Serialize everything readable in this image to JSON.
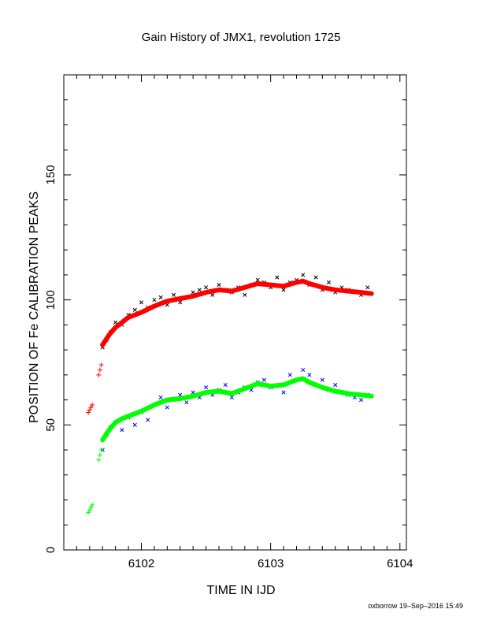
{
  "chart_data": {
    "type": "scatter",
    "title": "Gain History of JMX1, revolution 1725",
    "xlabel": "TIME IN IJD",
    "ylabel": "POSITION OF Fe CALIBRATION PEAKS",
    "xlim": [
      6101.4,
      6104.05
    ],
    "ylim": [
      0,
      190
    ],
    "xticks": [
      6102,
      6103,
      6104
    ],
    "yticks": [
      0,
      50,
      100,
      150
    ],
    "xtick_labels": [
      "6102",
      "6103",
      "6104"
    ],
    "ytick_labels": [
      "0",
      "50",
      "100",
      "150"
    ],
    "grid": false,
    "footer": "oxborrow 19–Sep–2016 15:49",
    "colors": {
      "upper_points": "#000000",
      "upper_fit": "#ff0000",
      "lower_points": "#0000ff",
      "lower_fit": "#00ff00"
    },
    "series": [
      {
        "marker": "x",
        "role": "upper-peak-points",
        "color": "#000000",
        "x": [
          6101.7,
          6101.73,
          6101.76,
          6101.8,
          6101.85,
          6101.9,
          6101.95,
          6102.0,
          6102.05,
          6102.1,
          6102.15,
          6102.2,
          6102.25,
          6102.3,
          6102.35,
          6102.4,
          6102.45,
          6102.5,
          6102.55,
          6102.6,
          6102.65,
          6102.7,
          6102.75,
          6102.8,
          6102.85,
          6102.9,
          6102.95,
          6103.0,
          6103.05,
          6103.1,
          6103.15,
          6103.2,
          6103.25,
          6103.3,
          6103.35,
          6103.4,
          6103.45,
          6103.5,
          6103.55,
          6103.6,
          6103.65,
          6103.7,
          6103.75
        ],
        "y": [
          81,
          84,
          87,
          91,
          90,
          94,
          96,
          99,
          97,
          100,
          101,
          98,
          102,
          99,
          101,
          103,
          104,
          105,
          102,
          106,
          104,
          103,
          105,
          102,
          106,
          108,
          107,
          105,
          109,
          104,
          107,
          108,
          110,
          106,
          109,
          104,
          107,
          103,
          105,
          104,
          103,
          102,
          105
        ]
      },
      {
        "marker": "line",
        "role": "upper-peak-fit",
        "color": "#ff0000",
        "x": [
          6101.7,
          6101.75,
          6101.8,
          6101.85,
          6101.9,
          6101.95,
          6102.0,
          6102.1,
          6102.2,
          6102.3,
          6102.4,
          6102.5,
          6102.6,
          6102.7,
          6102.8,
          6102.9,
          6103.0,
          6103.1,
          6103.2,
          6103.25,
          6103.3,
          6103.4,
          6103.5,
          6103.6,
          6103.7,
          6103.78
        ],
        "y": [
          82,
          86,
          89,
          91,
          93,
          94,
          95,
          97.5,
          99.5,
          100.5,
          101.5,
          103,
          104,
          103.5,
          105,
          106.5,
          106,
          105.5,
          107,
          107.5,
          106.5,
          105,
          104,
          103.5,
          103,
          102.5
        ]
      },
      {
        "marker": "+",
        "role": "early-upper-points",
        "color": "#ff0000",
        "x": [
          6101.59,
          6101.6,
          6101.61,
          6101.62,
          6101.67,
          6101.68,
          6101.69
        ],
        "y": [
          55,
          56,
          57,
          58,
          70,
          72,
          74
        ]
      },
      {
        "marker": "x",
        "role": "lower-peak-points",
        "color": "#0000ff",
        "x": [
          6101.7,
          6101.73,
          6101.76,
          6101.8,
          6101.85,
          6101.9,
          6101.95,
          6102.0,
          6102.05,
          6102.1,
          6102.15,
          6102.2,
          6102.25,
          6102.3,
          6102.35,
          6102.4,
          6102.45,
          6102.5,
          6102.55,
          6102.6,
          6102.65,
          6102.7,
          6102.75,
          6102.8,
          6102.85,
          6102.9,
          6102.95,
          6103.0,
          6103.05,
          6103.1,
          6103.15,
          6103.2,
          6103.25,
          6103.3,
          6103.35,
          6103.4,
          6103.45,
          6103.5,
          6103.55,
          6103.6,
          6103.65,
          6103.7,
          6103.75
        ],
        "y": [
          40,
          46,
          49,
          51,
          48,
          53,
          50,
          55,
          52,
          58,
          61,
          57,
          60,
          62,
          59,
          63,
          61,
          65,
          62,
          64,
          66,
          61,
          63,
          65,
          64,
          67,
          68,
          65,
          66,
          63,
          70,
          68,
          72,
          70,
          66,
          68,
          64,
          66,
          63,
          62,
          61,
          60,
          62
        ]
      },
      {
        "marker": "line",
        "role": "lower-peak-fit",
        "color": "#00ff00",
        "x": [
          6101.7,
          6101.75,
          6101.8,
          6101.85,
          6101.9,
          6101.95,
          6102.0,
          6102.1,
          6102.2,
          6102.3,
          6102.4,
          6102.5,
          6102.6,
          6102.7,
          6102.8,
          6102.9,
          6103.0,
          6103.1,
          6103.2,
          6103.25,
          6103.3,
          6103.4,
          6103.5,
          6103.6,
          6103.7,
          6103.78
        ],
        "y": [
          44,
          48,
          51,
          52.5,
          53.5,
          54.5,
          55.5,
          58,
          60,
          60.5,
          61.5,
          63,
          63.5,
          62.5,
          64.5,
          66.5,
          65.5,
          66,
          68,
          68.5,
          67,
          65,
          63.5,
          62.5,
          62,
          61.5
        ]
      },
      {
        "marker": "+",
        "role": "early-lower-points",
        "color": "#00ff00",
        "x": [
          6101.59,
          6101.6,
          6101.61,
          6101.62,
          6101.67,
          6101.68,
          6101.69
        ],
        "y": [
          15,
          16,
          17,
          18,
          36,
          38,
          40
        ]
      }
    ]
  }
}
